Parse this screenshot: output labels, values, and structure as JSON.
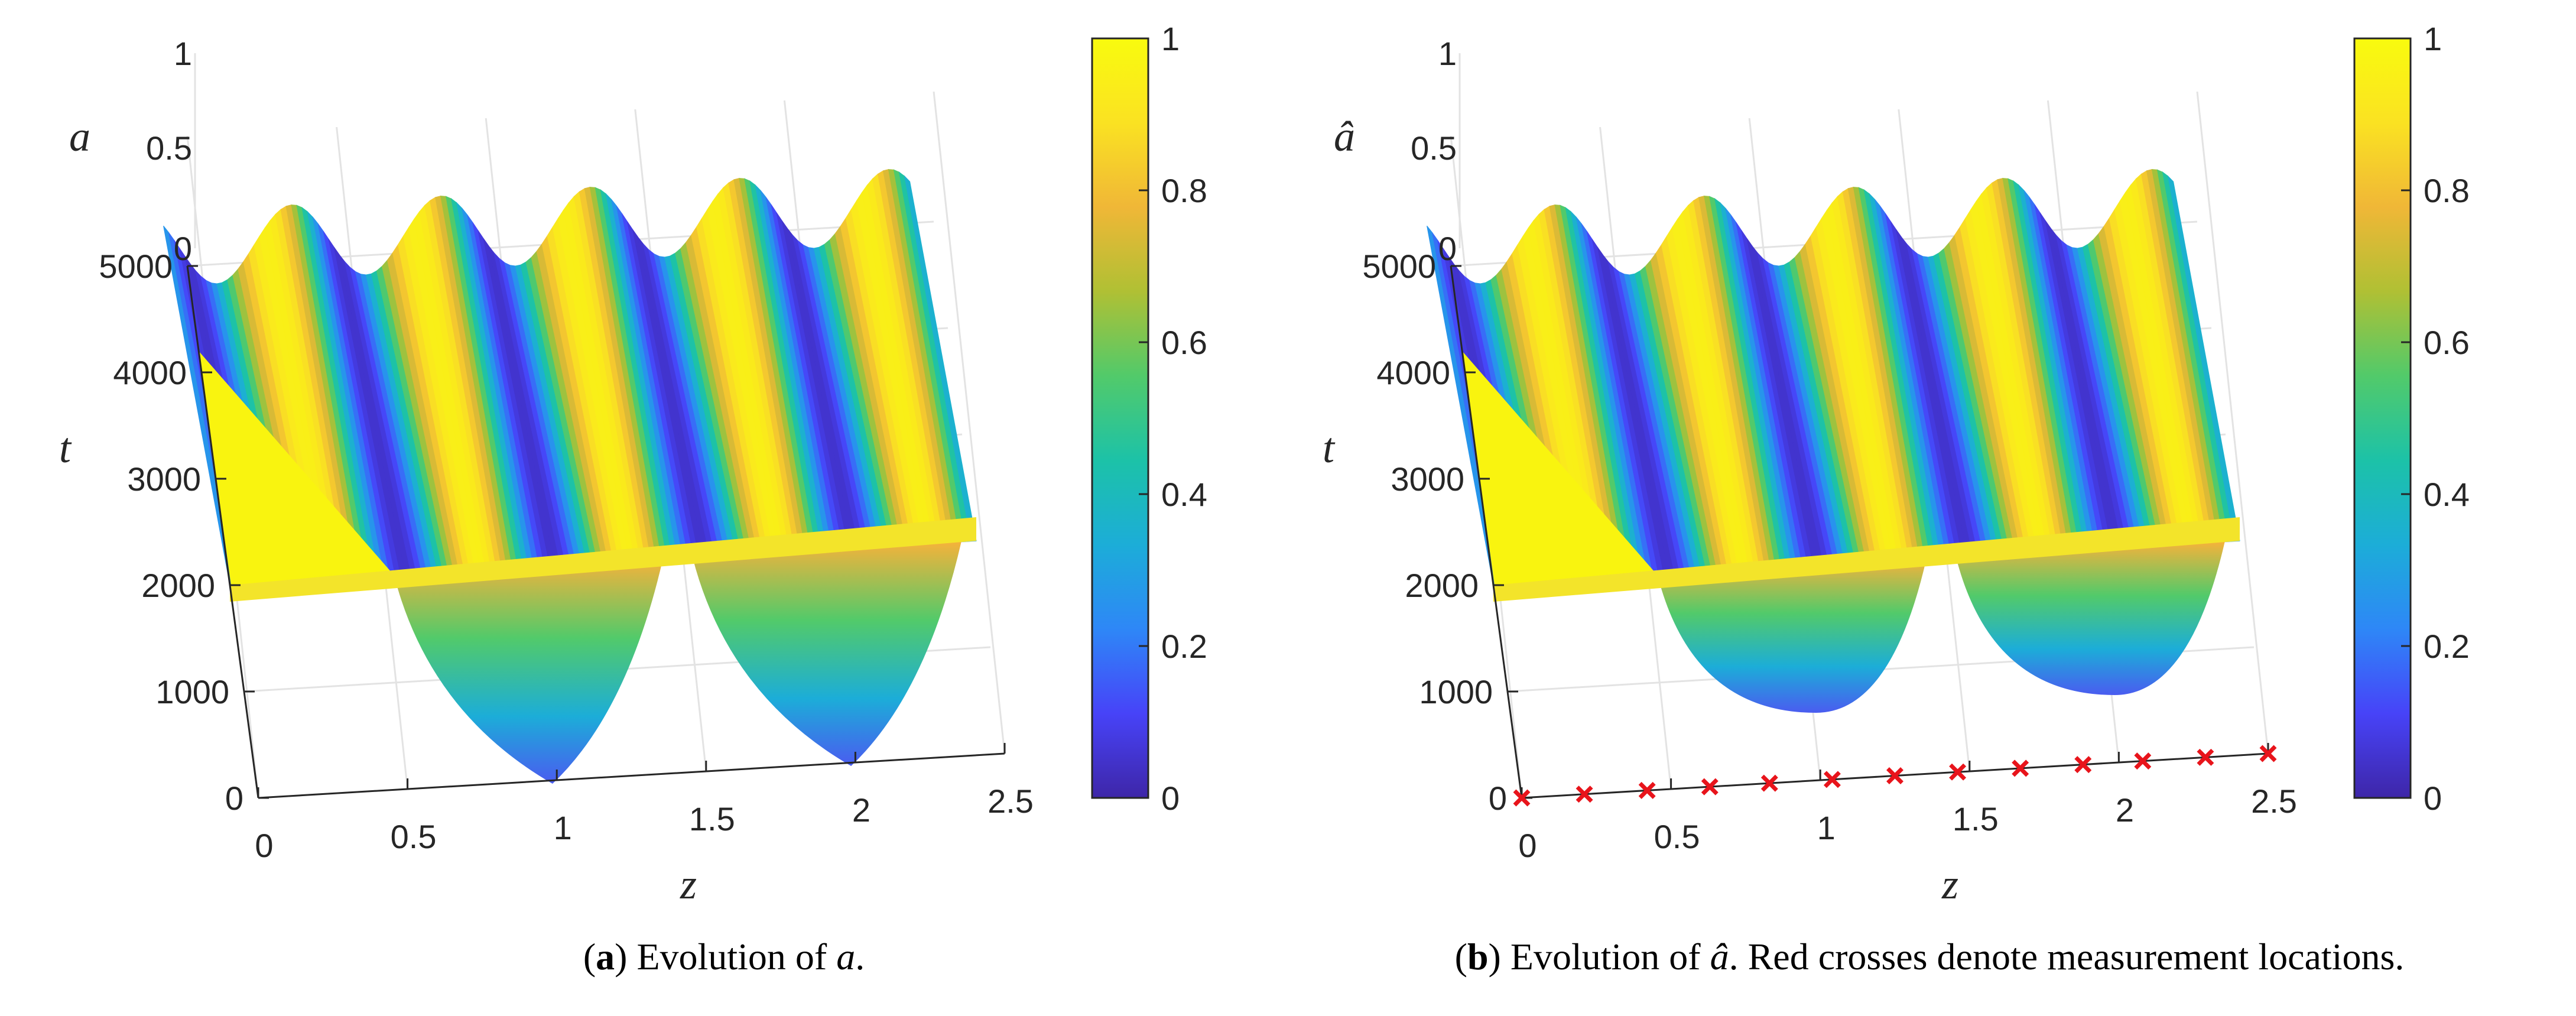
{
  "colormap": [
    "#3e26a8",
    "#4743f8",
    "#2e87f7",
    "#1cadd8",
    "#1cc2a8",
    "#52ca6a",
    "#b0c034",
    "#f0b737",
    "#fae222",
    "#f9fb0e"
  ],
  "chart_data": [
    {
      "type": "surface",
      "panel_label": "a",
      "caption_rest": ") Evolution of ",
      "caption_var": "a",
      "caption_end": ".",
      "xlabel": "z",
      "ylabel": "t",
      "zlabel": "a",
      "x_ticks": [
        "0",
        "0.5",
        "1",
        "1.5",
        "2",
        "2.5"
      ],
      "t_ticks": [
        "0",
        "1000",
        "2000",
        "3000",
        "4000",
        "5000"
      ],
      "z_ticks": [
        "0",
        "0.5",
        "1"
      ],
      "xlim": [
        0,
        2.5
      ],
      "tlim": [
        0,
        5000
      ],
      "zlim": [
        0,
        1
      ],
      "colorbar_ticks": [
        "0",
        "0.2",
        "0.4",
        "0.6",
        "0.8",
        "1"
      ],
      "clim": [
        0,
        1
      ],
      "measurement_z": []
    },
    {
      "type": "surface",
      "panel_label": "b",
      "caption_rest": ") Evolution of ",
      "caption_var": "â",
      "caption_end": ". Red crosses denote measurement locations.",
      "xlabel": "z",
      "ylabel": "t",
      "zlabel": "â",
      "x_ticks": [
        "0",
        "0.5",
        "1",
        "1.5",
        "2",
        "2.5"
      ],
      "t_ticks": [
        "0",
        "1000",
        "2000",
        "3000",
        "4000",
        "5000"
      ],
      "z_ticks": [
        "0",
        "0.5",
        "1"
      ],
      "xlim": [
        0,
        2.5
      ],
      "tlim": [
        0,
        5000
      ],
      "zlim": [
        0,
        1
      ],
      "colorbar_ticks": [
        "0",
        "0.2",
        "0.4",
        "0.6",
        "0.8",
        "1"
      ],
      "clim": [
        0,
        1
      ],
      "measurement_z": [
        0,
        0.21,
        0.42,
        0.63,
        0.83,
        1.04,
        1.25,
        1.46,
        1.67,
        1.88,
        2.08,
        2.29,
        2.5
      ]
    }
  ]
}
